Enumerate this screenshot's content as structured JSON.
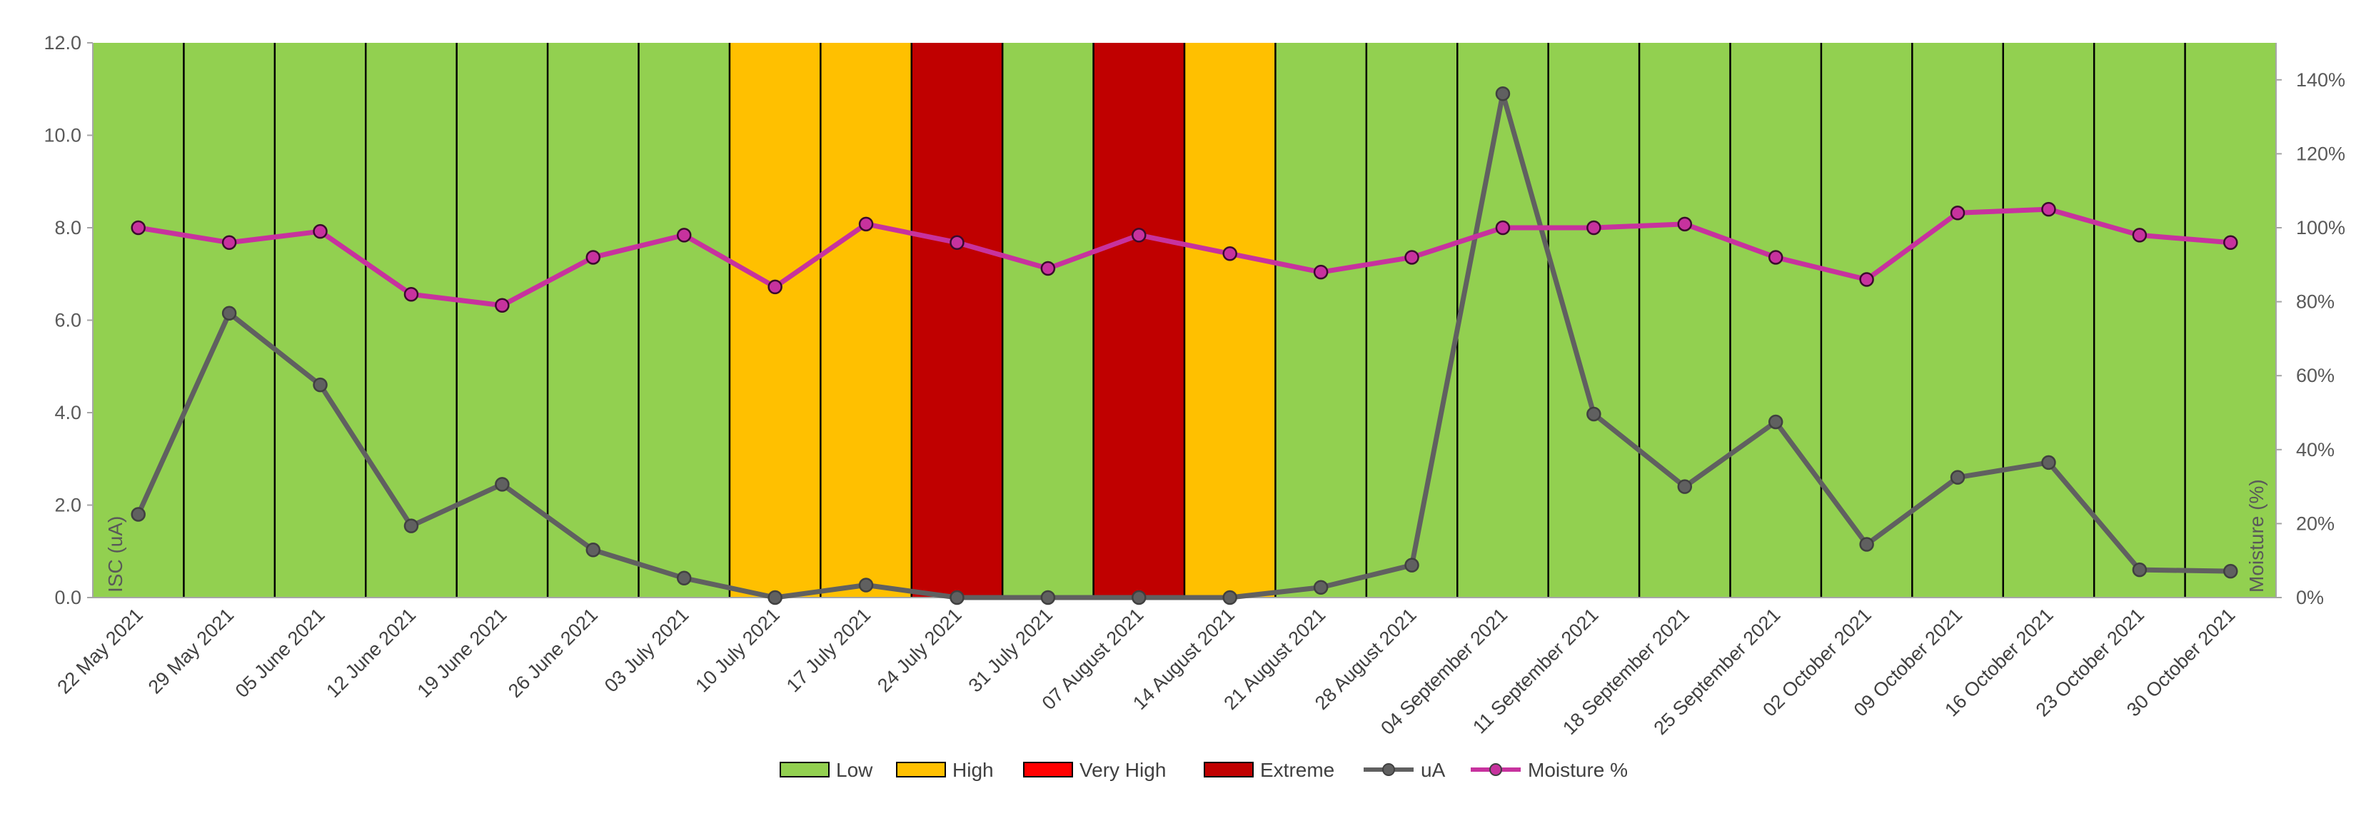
{
  "chart_data": {
    "type": "line",
    "dates": [
      "22 May 2021",
      "29 May 2021",
      "05 June 2021",
      "12 June 2021",
      "19 June 2021",
      "26 June 2021",
      "03 July 2021",
      "10 July 2021",
      "17 July 2021",
      "24 July 2021",
      "31 July 2021",
      "07 August 2021",
      "14 August 2021",
      "21 August 2021",
      "28 August 2021",
      "04 September 2021",
      "11 September 2021",
      "18 September 2021",
      "25 September 2021",
      "02 October 2021",
      "09 October 2021",
      "16 October 2021",
      "23 October 2021",
      "30 October 2021"
    ],
    "risk_bands": [
      "Low",
      "Low",
      "Low",
      "Low",
      "Low",
      "Low",
      "Low",
      "High",
      "High",
      "Extreme",
      "Low",
      "Extreme",
      "High",
      "Low",
      "Low",
      "Low",
      "Low",
      "Low",
      "Low",
      "Low",
      "Low",
      "Low",
      "Low",
      "Low"
    ],
    "series": [
      {
        "name": "uA",
        "axis": "left",
        "color": "#606060",
        "values": [
          1.8,
          6.15,
          4.6,
          1.55,
          2.45,
          1.03,
          0.42,
          0.0,
          0.27,
          0.0,
          0.0,
          0.0,
          0.0,
          0.22,
          0.7,
          10.9,
          3.97,
          2.4,
          3.8,
          1.15,
          2.6,
          2.92,
          0.6,
          0.57
        ]
      },
      {
        "name": "Moisture %",
        "axis": "right",
        "color": "#C7329E",
        "values": [
          100,
          96,
          99,
          82,
          79,
          92,
          98,
          84,
          101,
          96,
          89,
          98,
          93,
          88,
          92,
          100,
          100,
          101,
          92,
          86,
          104,
          105,
          98,
          96
        ]
      }
    ],
    "left_axis": {
      "title": "ISC (uA)",
      "min": 0,
      "max": 12,
      "ticks": [
        "0.0",
        "2.0",
        "4.0",
        "6.0",
        "8.0",
        "10.0",
        "12.0"
      ]
    },
    "right_axis": {
      "title": "Moisture (%)",
      "min": 0,
      "max": 150,
      "ticks": [
        "0%",
        "20%",
        "40%",
        "60%",
        "80%",
        "100%",
        "120%",
        "140%"
      ]
    },
    "legend": [
      {
        "label": "Low",
        "kind": "box",
        "color": "#92D050"
      },
      {
        "label": "High",
        "kind": "box",
        "color": "#FFC000"
      },
      {
        "label": "Very High",
        "kind": "box",
        "color": "#FF0000"
      },
      {
        "label": "Extreme",
        "kind": "box",
        "color": "#C00000"
      },
      {
        "label": "uA",
        "kind": "line",
        "color": "#606060"
      },
      {
        "label": "Moisture %",
        "kind": "line",
        "color": "#C7329E"
      }
    ],
    "legend_position": "bottom",
    "band_colors": {
      "Low": "#92D050",
      "High": "#FFC000",
      "Very High": "#FF0000",
      "Extreme": "#C00000"
    }
  }
}
